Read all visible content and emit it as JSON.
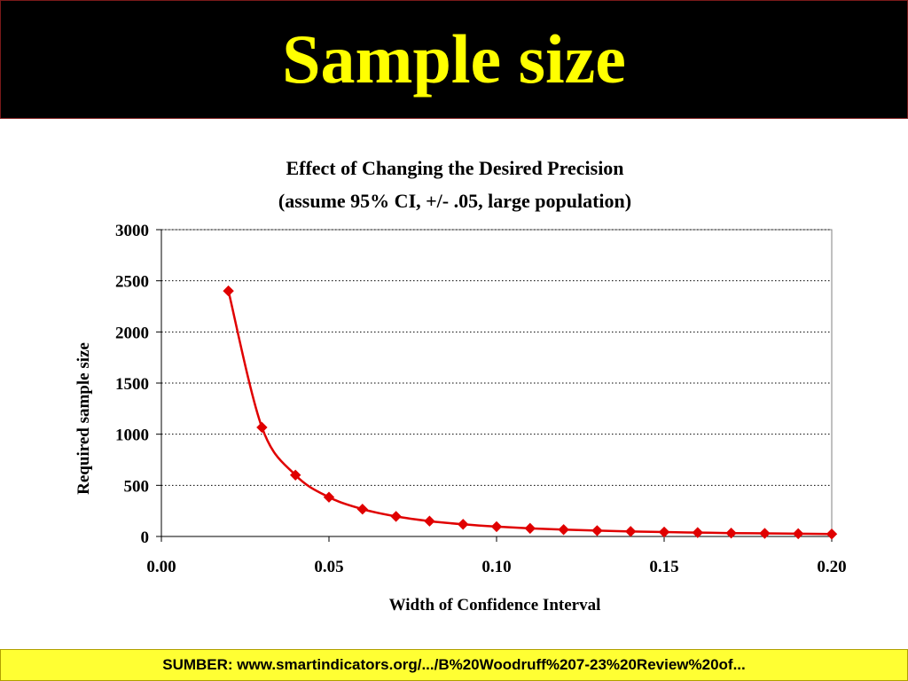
{
  "slide": {
    "title": "Sample size",
    "footer": "SUMBER: www.smartindicators.org/.../B%20Woodruff%207-23%20Review%20of..."
  },
  "colors": {
    "banner_bg": "#000000",
    "title_text": "#ffff00",
    "footer_bg": "#ffff33",
    "series": "#e00000"
  },
  "chart_data": {
    "type": "line",
    "title": "Effect of Changing the Desired Precision",
    "subtitle": "(assume 95% CI, +/- .05, large population)",
    "xlabel": "Width of Confidence Interval",
    "ylabel": "Required sample size",
    "xlim": [
      0,
      0.2
    ],
    "ylim": [
      0,
      3000
    ],
    "x_ticks": [
      "0.00",
      "0.05",
      "0.10",
      "0.15",
      "0.20"
    ],
    "y_ticks": [
      "0",
      "500",
      "1000",
      "1500",
      "2000",
      "2500",
      "3000"
    ],
    "grid": "horizontal dotted",
    "legend": "none",
    "series": [
      {
        "marker": "diamond",
        "x": [
          0.02,
          0.03,
          0.04,
          0.05,
          0.06,
          0.07,
          0.08,
          0.09,
          0.1,
          0.11,
          0.12,
          0.13,
          0.14,
          0.15,
          0.16,
          0.17,
          0.18,
          0.19,
          0.2
        ],
        "y": [
          2401,
          1067,
          600,
          384,
          267,
          196,
          150,
          119,
          96,
          79,
          67,
          57,
          49,
          43,
          38,
          33,
          30,
          27,
          24
        ]
      }
    ]
  }
}
